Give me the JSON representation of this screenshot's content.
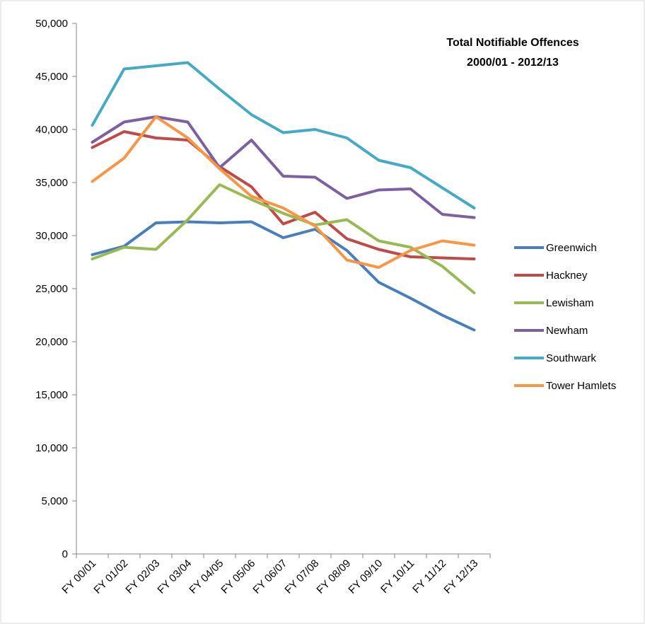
{
  "chart_data": {
    "type": "line",
    "title": "Total Notifiable Offences",
    "subtitle": "2000/01 - 2012/13",
    "xlabel": "",
    "ylabel": "",
    "categories": [
      "FY 00/01",
      "FY 01/02",
      "FY 02/03",
      "FY 03/04",
      "FY 04/05",
      "FY 05/06",
      "FY 06/07",
      "FY 07/08",
      "FY 08/09",
      "FY 09/10",
      "FY 10/11",
      "FY 11/12",
      "FY 12/13"
    ],
    "ylim": [
      0,
      50000
    ],
    "yticks": [
      0,
      5000,
      10000,
      15000,
      20000,
      25000,
      30000,
      35000,
      40000,
      45000,
      50000
    ],
    "ytick_labels": [
      "0",
      "5,000",
      "10,000",
      "15,000",
      "20,000",
      "25,000",
      "30,000",
      "35,000",
      "40,000",
      "45,000",
      "50,000"
    ],
    "grid": false,
    "legend_position": "right",
    "series": [
      {
        "name": "Greenwich",
        "color": "#4a7ebb",
        "values": [
          28200,
          29000,
          31200,
          31300,
          31200,
          31300,
          29800,
          30600,
          28600,
          25600,
          24100,
          22500,
          21100
        ]
      },
      {
        "name": "Hackney",
        "color": "#be4b48",
        "values": [
          38300,
          39800,
          39200,
          39000,
          36500,
          34600,
          31100,
          32200,
          29700,
          28700,
          28000,
          27900,
          27800
        ]
      },
      {
        "name": "Lewisham",
        "color": "#98b954",
        "values": [
          27800,
          28900,
          28700,
          31500,
          34800,
          33400,
          32100,
          31000,
          31500,
          29500,
          28900,
          27100,
          24600
        ]
      },
      {
        "name": "Newham",
        "color": "#7d60a0",
        "values": [
          38800,
          40700,
          41200,
          40700,
          36400,
          39000,
          35600,
          35500,
          33500,
          34300,
          34400,
          32000,
          31700
        ]
      },
      {
        "name": "Southwark",
        "color": "#46aac5",
        "values": [
          40400,
          45700,
          46000,
          46300,
          43800,
          41400,
          39700,
          40000,
          39200,
          37100,
          36400,
          34500,
          32600
        ]
      },
      {
        "name": "Tower Hamlets",
        "color": "#f79646",
        "values": [
          35100,
          37300,
          41200,
          39200,
          36300,
          33700,
          32600,
          30900,
          27700,
          27000,
          28600,
          29500,
          29100
        ]
      }
    ]
  }
}
